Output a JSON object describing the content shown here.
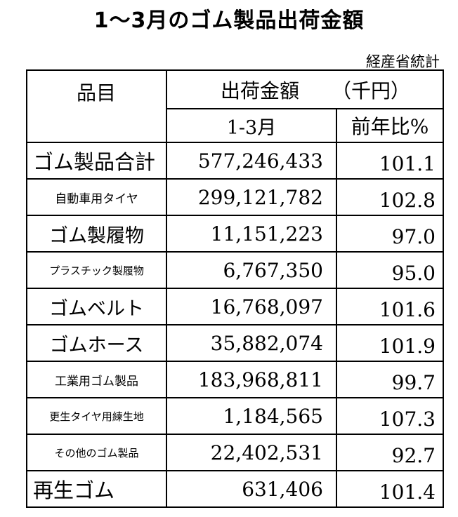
{
  "title": "1～3月のゴム製品出荷金額",
  "source": "経産省統計",
  "table": {
    "header_item": "品目",
    "header_amount": "出荷金額",
    "header_unit": "（千円）",
    "header_period": "1-3月",
    "header_yoy": "前年比%",
    "rows": [
      {
        "name": "ゴム製品合計",
        "value": "577,246,433",
        "yoy": "101.1"
      },
      {
        "name": "自動車用タイヤ",
        "value": "299,121,782",
        "yoy": "102.8"
      },
      {
        "name": "ゴム製履物",
        "value": "11,151,223",
        "yoy": "97.0"
      },
      {
        "name": "プラスチック製履物",
        "value": "6,767,350",
        "yoy": "95.0"
      },
      {
        "name": "ゴムベルト",
        "value": "16,768,097",
        "yoy": "101.6"
      },
      {
        "name": "ゴムホース",
        "value": "35,882,074",
        "yoy": "101.9"
      },
      {
        "name": "工業用ゴム製品",
        "value": "183,968,811",
        "yoy": "99.7"
      },
      {
        "name": "更生タイヤ用練生地",
        "value": "1,184,565",
        "yoy": "107.3"
      },
      {
        "name": "その他のゴム製品",
        "value": "22,402,531",
        "yoy": "92.7"
      },
      {
        "name": "再生ゴム",
        "value": "631,406",
        "yoy": "101.4"
      }
    ]
  }
}
